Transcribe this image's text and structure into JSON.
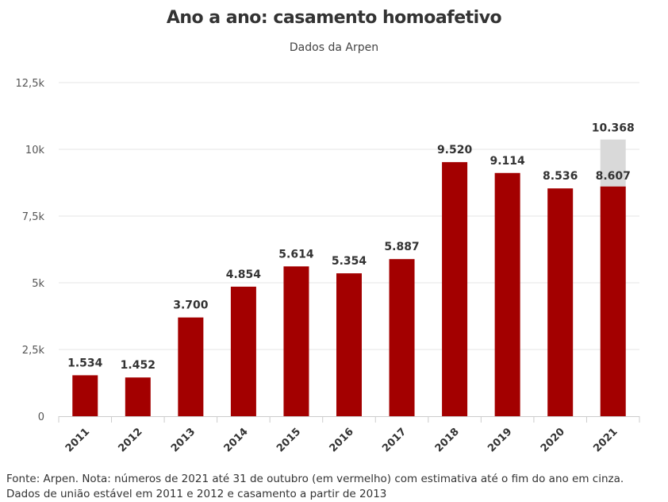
{
  "title": "Ano a ano: casamento homoafetivo",
  "subtitle": "Dados da Arpen",
  "note": {
    "line1": "Fonte: Arpen. Nota: números de 2021 até 31 de outubro (em vermelho) com estimativa até o fim do ano em cinza.",
    "line2": "Dados de união estável em 2011 e 2012 e casamento a partir de 2013"
  },
  "colors": {
    "bar": "#a30000",
    "estimate": "#d9d9d9",
    "grid": "#e6e6e6",
    "axis": "#cccccc"
  },
  "chart_data": {
    "type": "bar",
    "categories": [
      "2011",
      "2012",
      "2013",
      "2014",
      "2015",
      "2016",
      "2017",
      "2018",
      "2019",
      "2020",
      "2021"
    ],
    "series": [
      {
        "values": [
          1534,
          1452,
          3700,
          4854,
          5614,
          5354,
          5887,
          9520,
          9114,
          8536,
          8607
        ]
      },
      {
        "values": [
          null,
          null,
          null,
          null,
          null,
          null,
          null,
          null,
          null,
          null,
          10368
        ]
      }
    ],
    "data_labels": [
      "1.534",
      "1.452",
      "3.700",
      "4.854",
      "5.614",
      "5.354",
      "5.887",
      "9.520",
      "9.114",
      "8.536",
      "8.607"
    ],
    "estimate_label": "10.368",
    "ylim": [
      0,
      12500
    ],
    "yticks": [
      0,
      2500,
      5000,
      7500,
      10000,
      12500
    ],
    "ytick_labels": [
      "0",
      "2,5k",
      "5k",
      "7,5k",
      "10k",
      "12,5k"
    ],
    "grid": true,
    "legend": "none"
  }
}
